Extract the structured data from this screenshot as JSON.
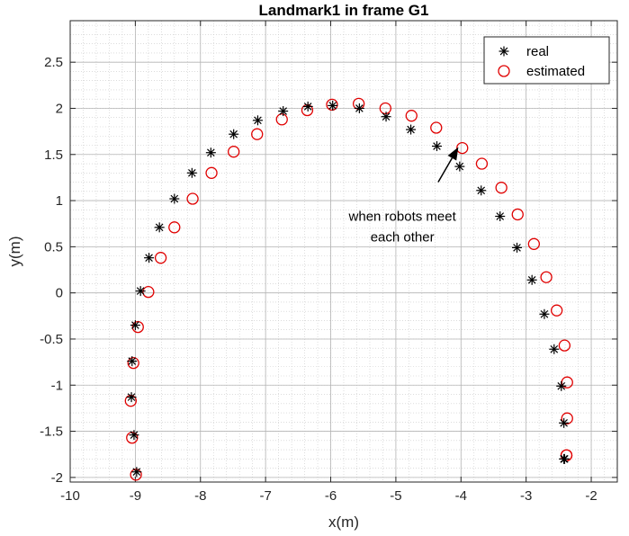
{
  "chart_data": {
    "type": "scatter",
    "title": "Landmark1 in frame G1",
    "xlabel": "x(m)",
    "ylabel": "y(m)",
    "xlim": [
      -10,
      -1.6
    ],
    "ylim": [
      -2.05,
      2.95
    ],
    "xticks": [
      -10,
      -9,
      -8,
      -7,
      -6,
      -5,
      -4,
      -3,
      -2
    ],
    "yticks": [
      -2,
      -1.5,
      -1,
      -0.5,
      0,
      0.5,
      1,
      1.5,
      2,
      2.5
    ],
    "xtick_labels": [
      "-10",
      "-9",
      "-8",
      "-7",
      "-6",
      "-5",
      "-4",
      "-3",
      "-2"
    ],
    "ytick_labels": [
      "-2",
      "-1.5",
      "-1",
      "-0.5",
      "0",
      "0.5",
      "1",
      "1.5",
      "2",
      "2.5"
    ],
    "grid": true,
    "minor_grid": true,
    "legend_position": "top-right",
    "series": [
      {
        "name": "real",
        "marker": "asterisk",
        "color": "#000000",
        "x": [
          -8.98,
          -9.02,
          -9.06,
          -9.05,
          -9.0,
          -8.92,
          -8.79,
          -8.63,
          -8.4,
          -8.13,
          -7.84,
          -7.49,
          -7.12,
          -6.73,
          -6.35,
          -5.97,
          -5.56,
          -5.15,
          -4.77,
          -4.37,
          -4.02,
          -3.69,
          -3.4,
          -3.14,
          -2.91,
          -2.72,
          -2.57,
          -2.46,
          -2.42,
          -2.41,
          -2.42
        ],
        "y": [
          -1.94,
          -1.54,
          -1.13,
          -0.74,
          -0.35,
          0.02,
          0.38,
          0.71,
          1.02,
          1.3,
          1.52,
          1.72,
          1.87,
          1.97,
          2.02,
          2.03,
          2.0,
          1.91,
          1.77,
          1.59,
          1.37,
          1.11,
          0.83,
          0.49,
          0.14,
          -0.23,
          -0.61,
          -1.01,
          -1.41,
          -1.8,
          -1.8
        ]
      },
      {
        "name": "estimated",
        "marker": "circle",
        "color": "#e00000",
        "x": [
          -8.99,
          -9.05,
          -9.07,
          -9.03,
          -8.96,
          -8.8,
          -8.61,
          -8.4,
          -8.12,
          -7.83,
          -7.49,
          -7.13,
          -6.75,
          -6.36,
          -5.98,
          -5.57,
          -5.16,
          -4.76,
          -4.38,
          -3.98,
          -3.68,
          -3.38,
          -3.13,
          -2.88,
          -2.69,
          -2.53,
          -2.41,
          -2.37,
          -2.37,
          -2.38,
          -2.38
        ],
        "y": [
          -1.97,
          -1.57,
          -1.17,
          -0.76,
          -0.37,
          0.01,
          0.38,
          0.71,
          1.02,
          1.3,
          1.53,
          1.72,
          1.88,
          1.98,
          2.04,
          2.05,
          2.0,
          1.92,
          1.79,
          1.57,
          1.4,
          1.14,
          0.85,
          0.53,
          0.17,
          -0.19,
          -0.57,
          -0.97,
          -1.36,
          -1.76,
          -1.76
        ]
      }
    ],
    "annotation": {
      "lines": [
        "when robots meet",
        "each other"
      ],
      "arrow_from": [
        -4.35,
        1.2
      ],
      "arrow_to": [
        -4.04,
        1.58
      ]
    }
  }
}
